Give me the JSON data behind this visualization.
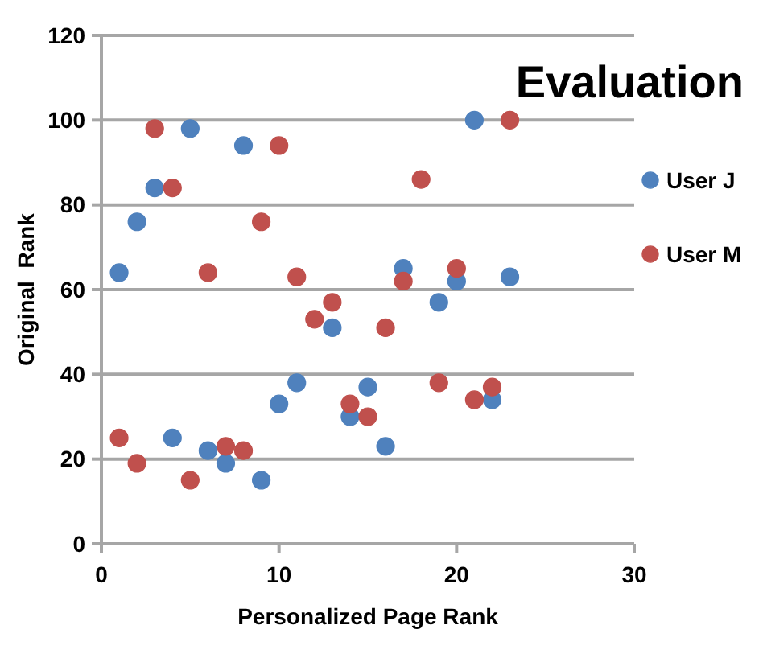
{
  "chart_data": {
    "type": "scatter",
    "title": "Evaluation",
    "xlabel": "Personalized Page Rank",
    "ylabel": "Original  Rank",
    "series": [
      {
        "name": "User J",
        "color": "#4f81bd",
        "x": [
          1,
          2,
          3,
          5,
          8,
          21,
          17,
          20,
          23,
          19,
          13,
          11,
          10,
          15,
          14,
          22,
          16,
          4,
          6,
          7,
          9
        ],
        "values": [
          64,
          76,
          84,
          98,
          94,
          100,
          65,
          62,
          63,
          57,
          51,
          38,
          33,
          37,
          30,
          34,
          23,
          25,
          22,
          19,
          15
        ]
      },
      {
        "name": "User M",
        "color": "#c0504d",
        "x": [
          3,
          4,
          10,
          23,
          18,
          9,
          6,
          11,
          13,
          12,
          17,
          20,
          16,
          19,
          22,
          21,
          14,
          15,
          1,
          2,
          5,
          7,
          8
        ],
        "values": [
          98,
          84,
          94,
          100,
          86,
          76,
          64,
          63,
          57,
          53,
          62,
          65,
          51,
          38,
          37,
          34,
          33,
          30,
          25,
          19,
          15,
          23,
          22
        ]
      }
    ],
    "xlim": [
      0,
      30
    ],
    "xticks": [
      0,
      10,
      20,
      30
    ],
    "ylim": [
      0,
      120
    ],
    "yticks": [
      0,
      20,
      40,
      60,
      80,
      100,
      120
    ],
    "grid": "y",
    "legend": "right",
    "marker": "circle"
  }
}
